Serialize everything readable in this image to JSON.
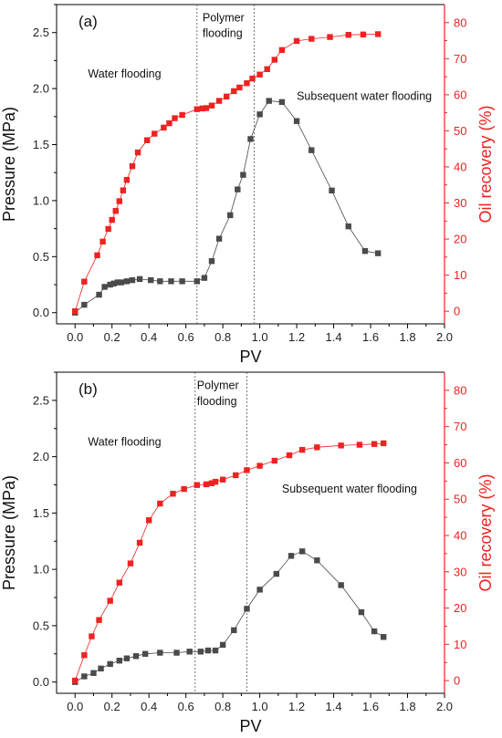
{
  "chart_data": [
    {
      "type": "line",
      "panel_label": "(a)",
      "xlabel": "PV",
      "ylabel_left": "Pressure (MPa)",
      "ylabel_right": "Oil recovery (%)",
      "xlim": [
        -0.1,
        2.0
      ],
      "ylim_left": [
        -0.1,
        2.75
      ],
      "ylim_right": [
        -3.5,
        85
      ],
      "xticks": [
        "0.0",
        "0.2",
        "0.4",
        "0.6",
        "0.8",
        "1.0",
        "1.2",
        "1.4",
        "1.6",
        "1.8",
        "2.0"
      ],
      "yticks_left": [
        "0.0",
        "0.5",
        "1.0",
        "1.5",
        "2.0",
        "2.5"
      ],
      "yticks_right": [
        "0",
        "10",
        "20",
        "30",
        "40",
        "50",
        "60",
        "70",
        "80"
      ],
      "colors": {
        "pressure": "#4a4a4a",
        "recovery": "#ee2222",
        "axis_right": "#ee2222",
        "axis_left": "#000000"
      },
      "annotations": [
        {
          "text": "Water flooding",
          "x": 0.07,
          "y": 2.1
        },
        {
          "text": "Polymer",
          "x": 0.69,
          "y": 2.6
        },
        {
          "text": "flooding",
          "x": 0.69,
          "y": 2.46
        },
        {
          "text": "Subsequent water flooding",
          "x": 1.2,
          "y": 1.9
        }
      ],
      "vlines": [
        0.66,
        0.97
      ],
      "series": [
        {
          "name": "Pressure",
          "axis": "left",
          "x": [
            0.0,
            0.05,
            0.13,
            0.16,
            0.19,
            0.21,
            0.23,
            0.25,
            0.28,
            0.31,
            0.35,
            0.41,
            0.46,
            0.52,
            0.58,
            0.66,
            0.7,
            0.74,
            0.78,
            0.84,
            0.88,
            0.91,
            0.95,
            1.0,
            1.05,
            1.12,
            1.2,
            1.28,
            1.39,
            1.48,
            1.57,
            1.64
          ],
          "y": [
            0.0,
            0.07,
            0.16,
            0.23,
            0.25,
            0.26,
            0.27,
            0.27,
            0.28,
            0.29,
            0.3,
            0.29,
            0.28,
            0.28,
            0.28,
            0.28,
            0.31,
            0.46,
            0.66,
            0.87,
            1.1,
            1.23,
            1.55,
            1.77,
            1.89,
            1.88,
            1.71,
            1.45,
            1.09,
            0.77,
            0.55,
            0.53
          ]
        },
        {
          "name": "Oil recovery",
          "axis": "right",
          "x": [
            0.0,
            0.05,
            0.12,
            0.15,
            0.18,
            0.2,
            0.22,
            0.24,
            0.26,
            0.28,
            0.31,
            0.34,
            0.39,
            0.43,
            0.48,
            0.51,
            0.54,
            0.58,
            0.66,
            0.69,
            0.71,
            0.74,
            0.78,
            0.82,
            0.86,
            0.89,
            0.93,
            0.96,
            1.0,
            1.04,
            1.08,
            1.12,
            1.2,
            1.28,
            1.38,
            1.48,
            1.56,
            1.64
          ],
          "y": [
            0.0,
            8.2,
            15.5,
            19.3,
            22.8,
            25.3,
            27.8,
            30.5,
            33.5,
            36.4,
            40.2,
            44.0,
            47.4,
            49.2,
            50.9,
            52.1,
            53.5,
            54.4,
            56.0,
            56.2,
            56.3,
            57.0,
            58.3,
            59.5,
            61.0,
            62.0,
            63.2,
            64.5,
            65.6,
            67.1,
            69.7,
            72.4,
            74.9,
            75.5,
            76.0,
            76.6,
            76.7,
            76.8
          ]
        }
      ]
    },
    {
      "type": "line",
      "panel_label": "(b)",
      "xlabel": "PV",
      "ylabel_left": "Pressure (MPa)",
      "ylabel_right": "Oil recovery (%)",
      "xlim": [
        -0.1,
        2.0
      ],
      "ylim_left": [
        -0.1,
        2.75
      ],
      "ylim_right": [
        -3.5,
        85
      ],
      "xticks": [
        "0.0",
        "0.2",
        "0.4",
        "0.6",
        "0.8",
        "1.0",
        "1.2",
        "1.4",
        "1.6",
        "1.8",
        "2.0"
      ],
      "yticks_left": [
        "0.0",
        "0.5",
        "1.0",
        "1.5",
        "2.0",
        "2.5"
      ],
      "yticks_right": [
        "0",
        "10",
        "20",
        "30",
        "40",
        "50",
        "60",
        "70",
        "80"
      ],
      "colors": {
        "pressure": "#4a4a4a",
        "recovery": "#ee2222",
        "axis_right": "#ee2222",
        "axis_left": "#000000"
      },
      "annotations": [
        {
          "text": "Water flooding",
          "x": 0.07,
          "y": 2.1
        },
        {
          "text": "Polymer",
          "x": 0.66,
          "y": 2.6
        },
        {
          "text": "flooding",
          "x": 0.66,
          "y": 2.46
        },
        {
          "text": "Subsequent water flooding",
          "x": 1.12,
          "y": 1.68
        }
      ],
      "vlines": [
        0.65,
        0.93
      ],
      "series": [
        {
          "name": "Pressure",
          "axis": "left",
          "x": [
            0.0,
            0.05,
            0.1,
            0.14,
            0.19,
            0.24,
            0.28,
            0.33,
            0.38,
            0.46,
            0.55,
            0.62,
            0.68,
            0.72,
            0.76,
            0.8,
            0.86,
            0.93,
            1.0,
            1.09,
            1.17,
            1.23,
            1.31,
            1.44,
            1.55,
            1.62,
            1.67
          ],
          "y": [
            0.0,
            0.05,
            0.08,
            0.12,
            0.16,
            0.19,
            0.21,
            0.23,
            0.25,
            0.26,
            0.26,
            0.27,
            0.27,
            0.28,
            0.28,
            0.33,
            0.46,
            0.65,
            0.82,
            0.96,
            1.12,
            1.16,
            1.08,
            0.86,
            0.62,
            0.45,
            0.4
          ]
        },
        {
          "name": "Oil recovery",
          "axis": "right",
          "x": [
            0.0,
            0.05,
            0.09,
            0.13,
            0.19,
            0.24,
            0.3,
            0.35,
            0.4,
            0.46,
            0.53,
            0.59,
            0.66,
            0.71,
            0.74,
            0.76,
            0.8,
            0.87,
            0.93,
            1.0,
            1.08,
            1.16,
            1.23,
            1.31,
            1.44,
            1.54,
            1.62,
            1.67
          ],
          "y": [
            0.0,
            7.0,
            12.2,
            16.7,
            22.0,
            27.0,
            32.3,
            38.0,
            44.2,
            48.8,
            51.5,
            52.8,
            53.9,
            54.1,
            54.4,
            54.8,
            55.4,
            56.6,
            58.0,
            59.2,
            60.6,
            62.1,
            63.6,
            64.3,
            64.8,
            65.0,
            65.2,
            65.4
          ]
        }
      ]
    }
  ]
}
